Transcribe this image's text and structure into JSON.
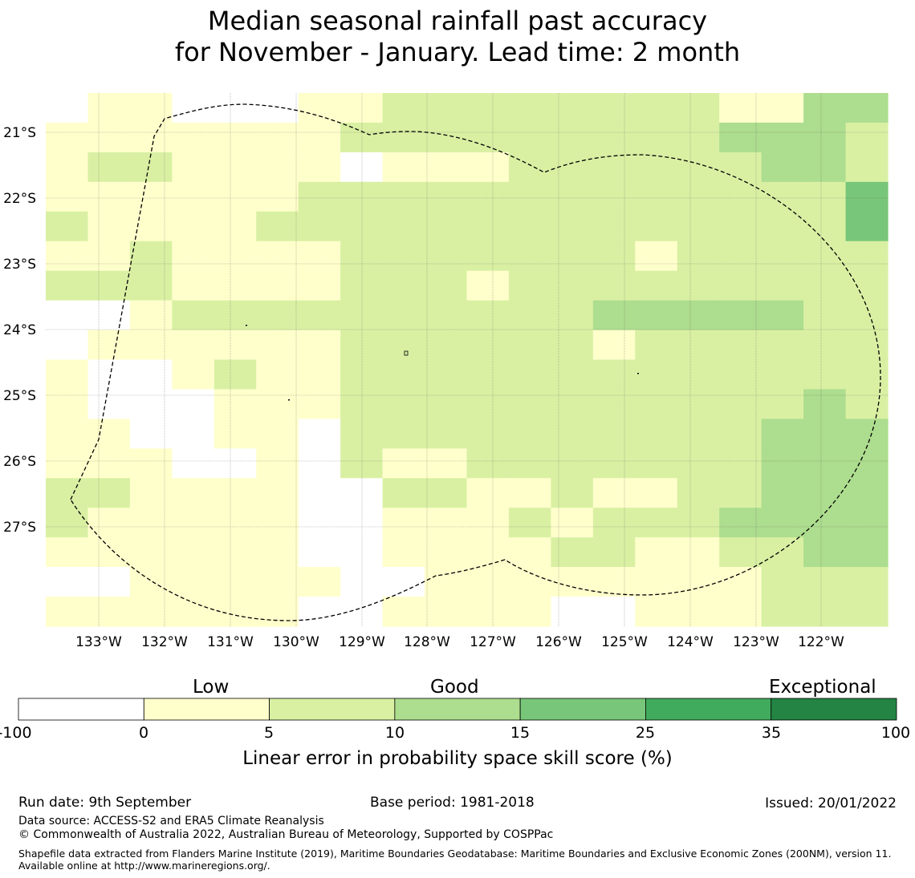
{
  "title": {
    "line1": "Median seasonal rainfall past accuracy",
    "line2": "for November - January. Lead time: 2 month"
  },
  "map": {
    "lat_labels": [
      "21°S",
      "22°S",
      "23°S",
      "24°S",
      "25°S",
      "26°S",
      "27°S"
    ],
    "lon_labels": [
      "133°W",
      "132°W",
      "131°W",
      "130°W",
      "129°W",
      "128°W",
      "127°W",
      "126°W",
      "125°W",
      "124°W",
      "123°W",
      "122°W"
    ],
    "grid": [
      "01100011222222221133",
      "11111112222222223332",
      "12211110111222222332",
      "11111122222222222224",
      "21111222222222222224",
      "11211112222222122222",
      "22211112221222222222",
      "00122222222223333322",
      "01111112222221222222",
      "10012112222222222222",
      "10001112222222222232",
      "11001102222222222333",
      "11100102112222222333",
      "22111100221121122333",
      "21111100111212223333",
      "11111100111122112233",
      "00111110011111111222",
      "11111100111100111222"
    ],
    "eez_boundary": "dashed line"
  },
  "legend": {
    "categories": [
      "Low",
      "Good",
      "Exceptional"
    ],
    "ticks": [
      "-100",
      "0",
      "5",
      "10",
      "15",
      "25",
      "35",
      "100"
    ],
    "colors": [
      "#ffffff",
      "#ffffcc",
      "#d9f0a3",
      "#addd8e",
      "#78c679",
      "#41ab5d",
      "#238443"
    ],
    "label": "Linear error in probability space skill score (%)"
  },
  "footer": {
    "run_date": "Run date: 9th September",
    "base_period": "Base period: 1981-2018",
    "issued": "Issued: 20/01/2022",
    "data_source": "Data source: ACCESS-S2 and ERA5 Climate Reanalysis",
    "copyright": "© Commonwealth of Australia 2022, Australian Bureau of Meteorology, Supported by COSPPac",
    "shapefile": "Shapefile data extracted from Flanders Marine Institute (2019), Maritime Boundaries Geodatabase: Maritime Boundaries and Exclusive Economic Zones (200NM), version 11. Available online at http://www.marineregions.org/."
  }
}
